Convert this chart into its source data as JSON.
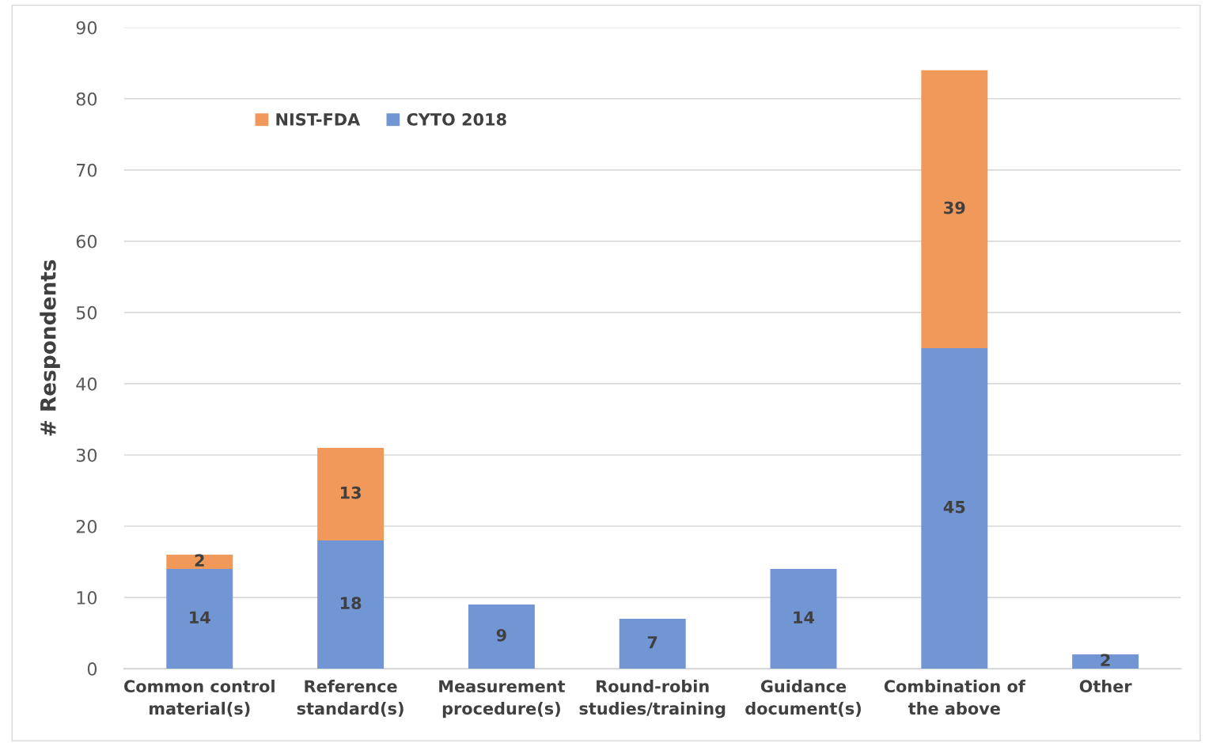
{
  "chart_data": {
    "type": "bar",
    "stacked": true,
    "ylabel": "# Respondents",
    "categories": [
      "Common control\nmaterial(s)",
      "Reference\nstandard(s)",
      "Measurement\nprocedure(s)",
      "Round-robin\nstudies/training",
      "Guidance\ndocument(s)",
      "Combination of\nthe above",
      "Other"
    ],
    "series": [
      {
        "name": "CYTO 2018",
        "color": "#7296d4",
        "values": [
          14,
          18,
          9,
          7,
          14,
          45,
          2
        ]
      },
      {
        "name": "NIST-FDA",
        "color": "#f0995a",
        "values": [
          2,
          13,
          null,
          null,
          null,
          39,
          null
        ]
      }
    ],
    "ylim": [
      0,
      90
    ],
    "yticks": [
      0,
      10,
      20,
      30,
      40,
      50,
      60,
      70,
      80,
      90
    ],
    "grid": "y",
    "legend": "top left",
    "data_labels": true
  }
}
